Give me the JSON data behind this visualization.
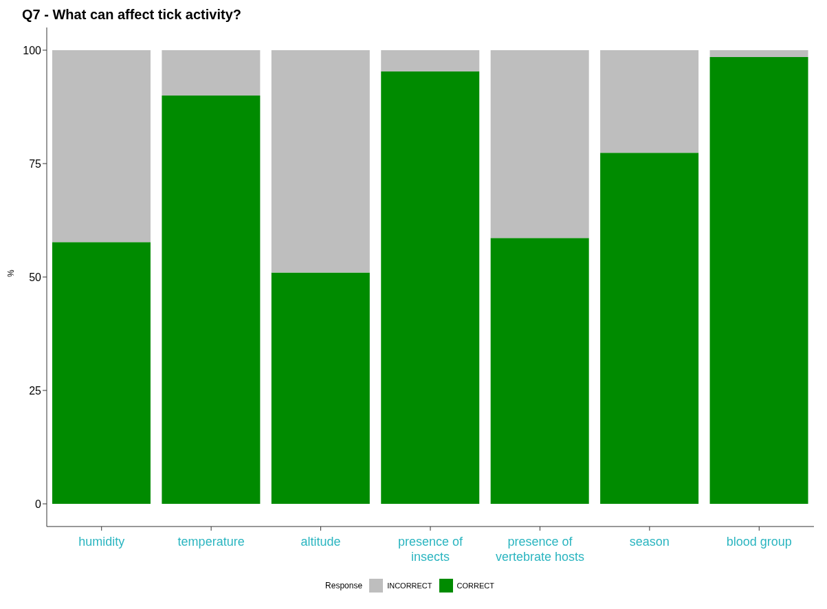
{
  "chart_data": {
    "type": "bar",
    "title": "Q7 - What can affect tick activity?",
    "ylabel": "%",
    "legend_title": "Response",
    "categories": [
      "humidity",
      "temperature",
      "altitude",
      "presence of insects",
      "presence of vertebrate hosts",
      "season",
      "blood group"
    ],
    "stacked": true,
    "series": [
      {
        "name": "CORRECT",
        "color": "#008b00",
        "values": [
          57.7,
          90.0,
          51.0,
          95.3,
          58.6,
          77.4,
          98.5
        ]
      },
      {
        "name": "INCORRECT",
        "color": "#bebebe",
        "values": [
          42.3,
          10.0,
          49.0,
          4.7,
          41.4,
          22.6,
          1.5
        ]
      }
    ],
    "ylim": [
      -5,
      105
    ],
    "yticks": [
      0,
      25,
      50,
      75,
      100
    ],
    "grid": false,
    "legend": "bottom"
  }
}
